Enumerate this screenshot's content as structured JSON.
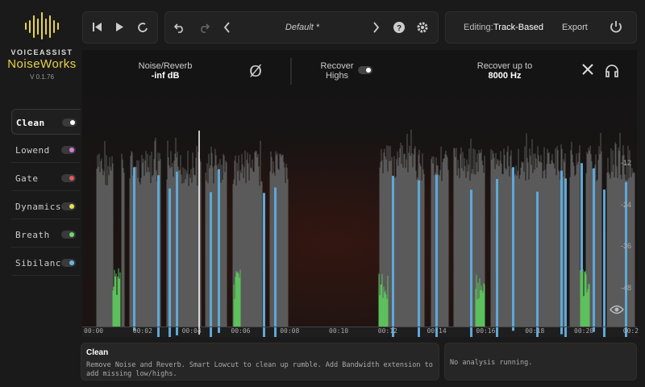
{
  "logo": {
    "brand": "VOICEASSIST",
    "product": "NoiseWorks",
    "version": "V 0.1.76"
  },
  "toolbar": {
    "preset": "Default *",
    "editing_label": "Editing:",
    "editing_mode": "Track-Based",
    "export": "Export"
  },
  "header": {
    "noise_label": "Noise/Reverb",
    "noise_value": "-inf dB",
    "recover_label": "Recover Highs",
    "recover_up_label": "Recover up to",
    "recover_up_value": "8000 Hz"
  },
  "modules": [
    "Clean",
    "Lowend",
    "Gate",
    "Dynamics",
    "Breath",
    "Sibilance"
  ],
  "time_axis": [
    "00:00",
    "00:02",
    "00:04",
    "00:06",
    "00:08",
    "00:10",
    "00:12",
    "00:14",
    "00:16",
    "00:18",
    "00:20",
    "00:2"
  ],
  "level_axis": [
    "-12",
    "-24",
    "-36",
    "-48"
  ],
  "info": {
    "title": "Clean",
    "description": "Remove Noise and Reverb. Smart Lowcut to clean up rumble. Add Bandwidth extension to add missing low/highs.",
    "status": "No analysis running."
  }
}
